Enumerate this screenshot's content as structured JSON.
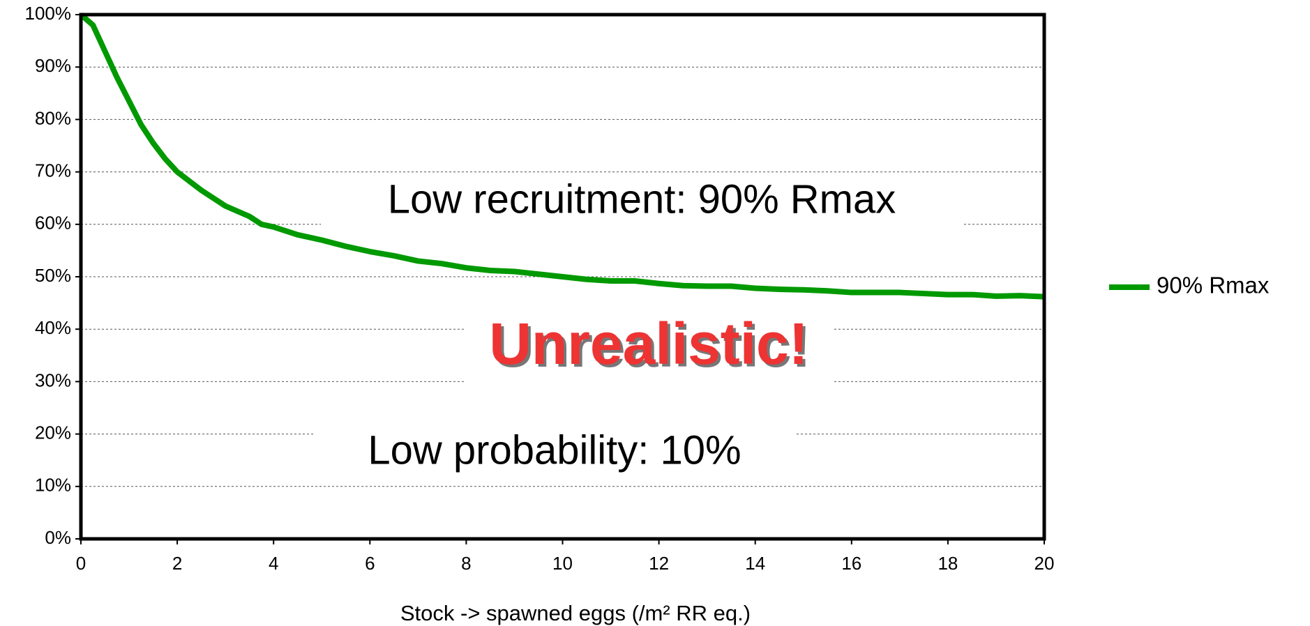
{
  "chart_data": {
    "type": "line",
    "x_label": "Stock -> spawned eggs (/m² RR eq.)",
    "x": [
      0,
      0.25,
      0.5,
      0.75,
      1,
      1.25,
      1.5,
      1.75,
      2,
      2.5,
      3,
      3.5,
      3.75,
      4,
      4.5,
      5,
      5.5,
      6,
      6.5,
      7,
      7.5,
      8,
      8.5,
      9,
      9.5,
      10,
      10.5,
      11,
      11.5,
      12,
      12.5,
      13,
      13.5,
      14,
      14.5,
      15,
      15.5,
      16,
      16.5,
      17,
      17.5,
      18,
      18.5,
      19,
      19.5,
      20
    ],
    "series": [
      {
        "name": "90% Rmax",
        "color": "#009900",
        "values": [
          100,
          98,
          93,
          88,
          83.5,
          79,
          75.5,
          72.5,
          70,
          66.5,
          63.5,
          61.5,
          60,
          59.5,
          58,
          57,
          55.8,
          54.8,
          54,
          53,
          52.5,
          51.7,
          51.2,
          51,
          50.5,
          50,
          49.5,
          49.2,
          49.2,
          48.7,
          48.3,
          48.2,
          48.2,
          47.8,
          47.6,
          47.5,
          47.3,
          47,
          47,
          47,
          46.8,
          46.6,
          46.6,
          46.3,
          46.4,
          46.2
        ]
      }
    ],
    "xlim": [
      0,
      20
    ],
    "xticks": [
      0,
      2,
      4,
      6,
      8,
      10,
      12,
      14,
      16,
      18,
      20
    ],
    "ylim": [
      0,
      100
    ],
    "yticks": [
      {
        "value": 0,
        "label": "0%"
      },
      {
        "value": 10,
        "label": "10%"
      },
      {
        "value": 20,
        "label": "20%"
      },
      {
        "value": 30,
        "label": "30%"
      },
      {
        "value": 40,
        "label": "40%"
      },
      {
        "value": 50,
        "label": "50%"
      },
      {
        "value": 60,
        "label": "60%"
      },
      {
        "value": 70,
        "label": "70%"
      },
      {
        "value": 80,
        "label": "80%"
      },
      {
        "value": 90,
        "label": "90%"
      },
      {
        "value": 100,
        "label": "100%"
      }
    ],
    "grid": true,
    "legend": "right",
    "annotations": [
      "Low recruitment: 90% Rmax",
      "Unrealistic!",
      "Low probability: 10%"
    ]
  }
}
